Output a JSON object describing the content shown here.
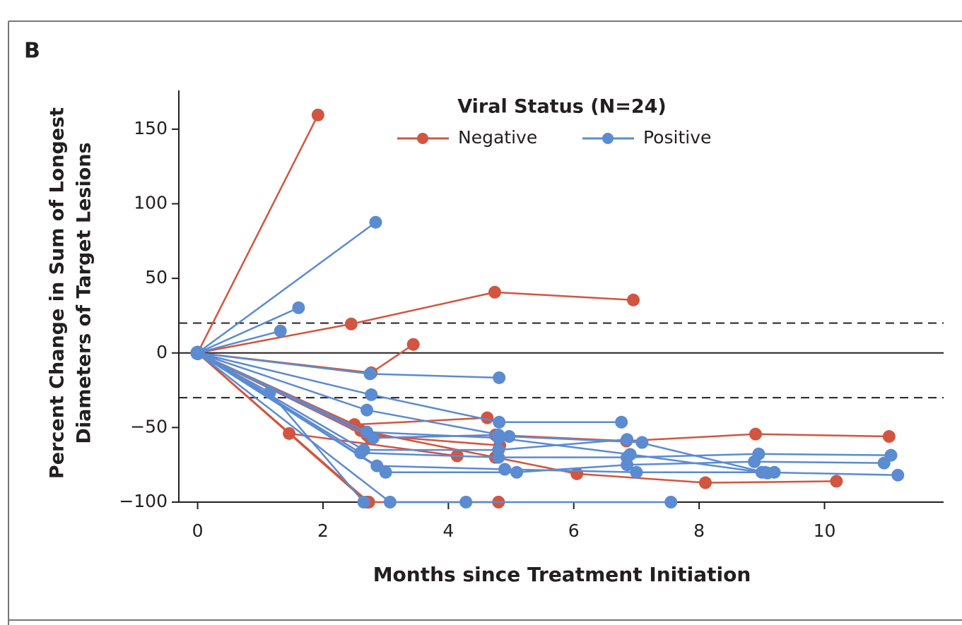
{
  "chart_data": {
    "type": "spider",
    "panel_label": "B",
    "legend_title": "Viral Status (N=24)",
    "x_label": "Months since Treatment Initiation",
    "y_label": [
      "Percent Change in Sum of Longest",
      "Diameters of Target Lesions"
    ],
    "xlim": [
      -0.3,
      11.9
    ],
    "ylim": [
      -100,
      176
    ],
    "xticks": [
      0,
      2,
      4,
      6,
      8,
      10
    ],
    "yticks": [
      {
        "value": -100,
        "label": "−100"
      },
      {
        "value": -50,
        "label": "−50"
      },
      0,
      50,
      100,
      150
    ],
    "reference_lines": [
      {
        "value": 20,
        "style": "dashed"
      },
      {
        "value": 0,
        "style": "solid"
      },
      {
        "value": -30,
        "style": "dashed"
      }
    ],
    "groups": [
      {
        "name": "Negative",
        "color": "#d2553f",
        "patients": [
          {
            "x": [
              0,
              1.92
            ],
            "values": [
              0,
              159.5
            ]
          },
          {
            "x": [
              0,
              2.45,
              4.74,
              6.95
            ],
            "values": [
              0,
              19.4,
              40.7,
              35.5
            ]
          },
          {
            "x": [
              0,
              2.77,
              3.44
            ],
            "values": [
              0,
              -13.3,
              5.7
            ]
          },
          {
            "x": [
              0,
              1.46,
              4.14
            ],
            "values": [
              0,
              -54,
              -69
            ]
          },
          {
            "x": [
              0,
              2.5,
              4.62
            ],
            "values": [
              0,
              -48,
              -43.5
            ]
          },
          {
            "x": [
              0,
              2.7,
              4.82
            ],
            "values": [
              0,
              -55,
              -62
            ]
          },
          {
            "x": [
              0,
              2.75,
              4.75,
              6.84,
              8.9,
              11.03
            ],
            "values": [
              0,
              -57,
              -55,
              -59,
              -54.4,
              -56
            ]
          },
          {
            "x": [
              0,
              2.73,
              4.8
            ],
            "values": [
              0,
              -100,
              -100
            ]
          },
          {
            "x": [
              0,
              2.6,
              4.75,
              6.05,
              8.1,
              10.19
            ],
            "values": [
              0,
              -52,
              -70,
              -81,
              -87,
              -86
            ]
          },
          {
            "x": [
              0,
              2.7
            ],
            "values": [
              0,
              -100
            ]
          }
        ]
      },
      {
        "name": "Positive",
        "color": "#5b8bd0",
        "patients": [
          {
            "x": [
              0,
              2.84
            ],
            "values": [
              0,
              87.6
            ]
          },
          {
            "x": [
              0,
              1.61
            ],
            "values": [
              0,
              30.3
            ]
          },
          {
            "x": [
              0,
              1.32
            ],
            "values": [
              0,
              14.7
            ]
          },
          {
            "x": [
              0,
              2.75,
              4.81
            ],
            "values": [
              0,
              -14,
              -16.6
            ]
          },
          {
            "x": [
              0,
              2.77,
              4.81,
              6.76
            ],
            "values": [
              0,
              -28,
              -46.4,
              -46.4
            ]
          },
          {
            "x": [
              0,
              2.7,
              4.97,
              7.09
            ],
            "values": [
              0,
              -38.3,
              -56,
              -60
            ]
          },
          {
            "x": [
              0,
              2.6,
              4.8,
              6.85,
              8.95,
              11.06
            ],
            "values": [
              0,
              -67,
              -70,
              -70,
              -67.7,
              -68.6
            ]
          },
          {
            "x": [
              0,
              2.86,
              4.9,
              7.0,
              9.05,
              11.17
            ],
            "values": [
              0,
              -75.7,
              -78,
              -80,
              -80,
              -81.9
            ]
          },
          {
            "x": [
              0,
              3.0,
              5.09,
              6.85,
              8.88,
              10.95
            ],
            "values": [
              0,
              -80,
              -80,
              -75,
              -72.9,
              -73.8
            ]
          },
          {
            "x": [
              0,
              1.15,
              2.65
            ],
            "values": [
              0,
              -26.5,
              -100
            ]
          },
          {
            "x": [
              0,
              3.07,
              4.28,
              7.55
            ],
            "values": [
              0,
              -100,
              -100,
              -100
            ]
          },
          {
            "x": [
              0,
              2.65,
              4.8,
              6.85,
              9.09,
              9.2
            ],
            "values": [
              0,
              -65,
              -65,
              -58,
              -80.5,
              -80
            ]
          },
          {
            "x": [
              0,
              2.7,
              4.8,
              6.9,
              9.0
            ],
            "values": [
              0,
              -53,
              -57,
              -68,
              -80
            ]
          },
          {
            "x": [
              0,
              2.8,
              4.8
            ],
            "values": [
              0,
              -57,
              -55
            ]
          }
        ]
      }
    ]
  }
}
